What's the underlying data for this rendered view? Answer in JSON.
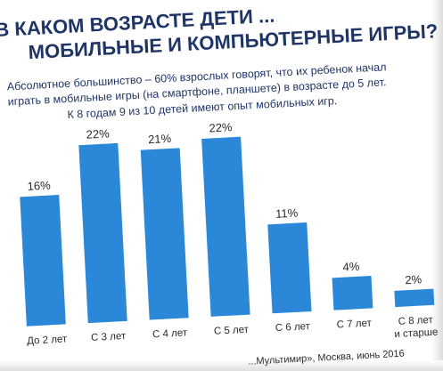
{
  "title_line1": "В КАКОМ ВОЗРАСТЕ ДЕТИ ...",
  "title_line2": "МОБИЛЬНЫЕ И КОМПЬЮТЕРНЫЕ ИГРЫ?",
  "subtitle_line1": "Абсолютное большинство – 60% взрослых говорят, что их ребенок начал",
  "subtitle_line2": "играть в мобильные игры (на смартфоне, планшете) в возрасте до 5 лет.",
  "subtitle_line3": "К 8 годам 9 из 10 детей имеют опыт мобильных игр.",
  "source": "...Мультимир», Москва, июнь 2016",
  "colors": {
    "bar": "#2b88d8",
    "title": "#1f3566"
  },
  "chart_data": {
    "type": "bar",
    "categories": [
      "До 2 лет",
      "С 3 лет",
      "С 4 лет",
      "С 5 лет",
      "С 6 лет",
      "С 7 лет",
      "С 8 лет и старше"
    ],
    "category_lines": [
      [
        "До 2 лет"
      ],
      [
        "С 3 лет"
      ],
      [
        "С 4 лет"
      ],
      [
        "С 5 лет"
      ],
      [
        "С 6 лет"
      ],
      [
        "С 7 лет"
      ],
      [
        "С 8 лет",
        "и старше"
      ]
    ],
    "values": [
      16,
      22,
      21,
      22,
      11,
      4,
      2
    ],
    "value_labels": [
      "16%",
      "22%",
      "21%",
      "22%",
      "11%",
      "4%",
      "2%"
    ],
    "ylim": [
      0,
      25
    ],
    "grid": false,
    "legend": "none"
  }
}
